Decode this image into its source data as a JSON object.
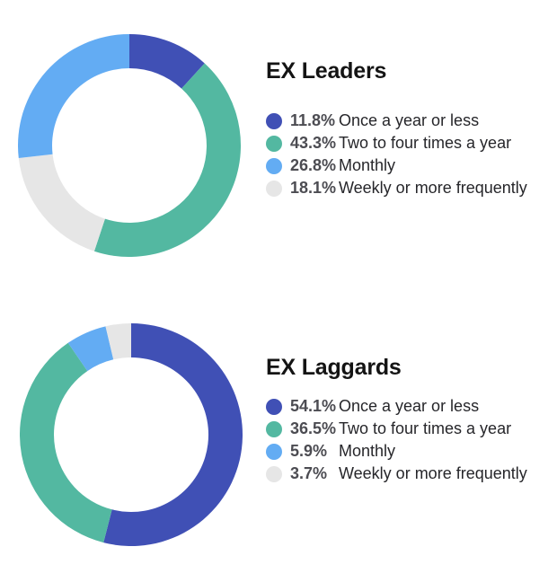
{
  "page": {
    "background": "#ffffff"
  },
  "chart_data": [
    {
      "type": "donut",
      "title": "EX Leaders",
      "categories": [
        "Once a year or less",
        "Two to four times a year",
        "Monthly",
        "Weekly or more frequently"
      ],
      "values": [
        11.8,
        43.3,
        26.8,
        18.1
      ],
      "value_labels": [
        "11.8%",
        "43.3%",
        "26.8%",
        "18.1%"
      ],
      "colors": [
        "#4050B5",
        "#53B8A1",
        "#63ACF3",
        "#E6E6E6"
      ],
      "draw_order": [
        0,
        1,
        3,
        2
      ],
      "start_angle_deg": 0,
      "direction": "clockwise",
      "inner_radius_ratio": 0.6935,
      "legend_position": "right"
    },
    {
      "type": "donut",
      "title": "EX Laggards",
      "categories": [
        "Once a year or less",
        "Two to four times a year",
        "Monthly",
        "Weekly or more frequently"
      ],
      "values": [
        54.1,
        36.5,
        5.9,
        3.7
      ],
      "value_labels": [
        "54.1%",
        "36.5%",
        "5.9%",
        "3.7%"
      ],
      "colors": [
        "#4050B5",
        "#53B8A1",
        "#63ACF3",
        "#E6E6E6"
      ],
      "draw_order": [
        0,
        1,
        2,
        3
      ],
      "start_angle_deg": 0,
      "direction": "clockwise",
      "inner_radius_ratio": 0.6935,
      "legend_position": "right"
    }
  ]
}
